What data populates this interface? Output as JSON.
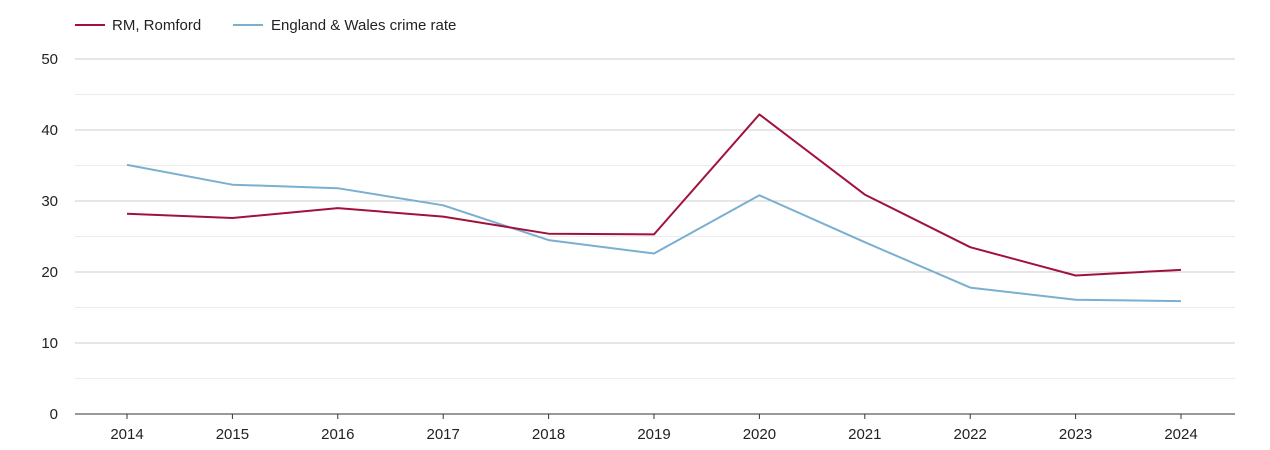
{
  "chart_data": {
    "type": "line",
    "title": "",
    "xlabel": "",
    "ylabel": "",
    "x": [
      "2014",
      "2015",
      "2016",
      "2017",
      "2018",
      "2019",
      "2020",
      "2021",
      "2022",
      "2023",
      "2024"
    ],
    "ylim": [
      0,
      50
    ],
    "yticks": [
      "0",
      "10",
      "20",
      "30",
      "40",
      "50"
    ],
    "grid": true,
    "legend_position": "top-left",
    "series": [
      {
        "name": "RM, Romford",
        "color": "#a0123c",
        "values": [
          28.2,
          27.6,
          29.0,
          27.8,
          25.4,
          25.3,
          42.2,
          30.9,
          23.5,
          19.5,
          20.3
        ]
      },
      {
        "name": "England & Wales crime rate",
        "color": "#7aafd1",
        "values": [
          35.1,
          32.3,
          31.8,
          29.4,
          24.5,
          22.6,
          30.8,
          24.2,
          17.8,
          16.1,
          15.9
        ]
      }
    ]
  }
}
